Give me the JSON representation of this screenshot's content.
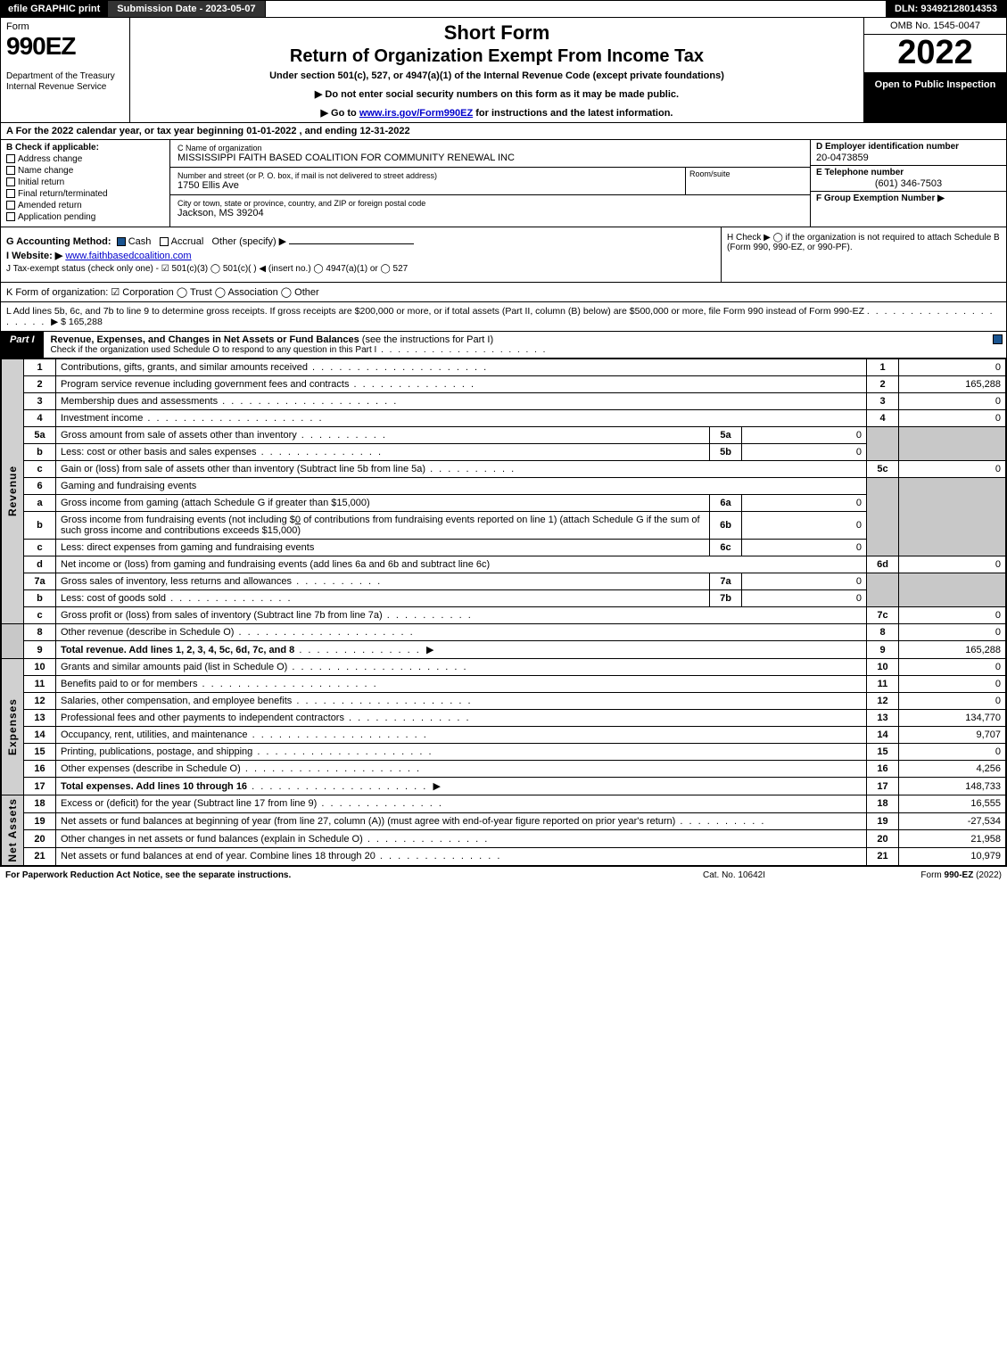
{
  "topbar": {
    "efile": "efile GRAPHIC print",
    "subdate_label": "Submission Date - 2023-05-07",
    "dln": "DLN: 93492128014353"
  },
  "header": {
    "form_word": "Form",
    "form_num": "990EZ",
    "dept": "Department of the Treasury\nInternal Revenue Service",
    "short": "Short Form",
    "title": "Return of Organization Exempt From Income Tax",
    "under": "Under section 501(c), 527, or 4947(a)(1) of the Internal Revenue Code (except private foundations)",
    "instr1": "▶ Do not enter social security numbers on this form as it may be made public.",
    "instr2_pre": "▶ Go to ",
    "instr2_link": "www.irs.gov/Form990EZ",
    "instr2_post": " for instructions and the latest information.",
    "omb": "OMB No. 1545-0047",
    "year": "2022",
    "open": "Open to Public Inspection"
  },
  "line_a": "A  For the 2022 calendar year, or tax year beginning 01-01-2022  , and ending 12-31-2022",
  "sec_b": {
    "title": "B  Check if applicable:",
    "opts": [
      "Address change",
      "Name change",
      "Initial return",
      "Final return/terminated",
      "Amended return",
      "Application pending"
    ],
    "c_label": "C Name of organization",
    "c_val": "MISSISSIPPI FAITH BASED COALITION FOR COMMUNITY RENEWAL INC",
    "street_label": "Number and street (or P. O. box, if mail is not delivered to street address)",
    "street_val": "1750 Ellis Ave",
    "room_label": "Room/suite",
    "city_label": "City or town, state or province, country, and ZIP or foreign postal code",
    "city_val": "Jackson, MS  39204",
    "d_label": "D Employer identification number",
    "d_val": "20-0473859",
    "e_label": "E Telephone number",
    "e_val": "(601) 346-7503",
    "f_label": "F Group Exemption Number  ▶"
  },
  "sec_g": {
    "g_label": "G Accounting Method:",
    "g_cash": "Cash",
    "g_accr": "Accrual",
    "g_other": "Other (specify) ▶",
    "i_label": "I Website: ▶",
    "i_val": "www.faithbasedcoalition.com",
    "j_text": "J Tax-exempt status (check only one) - ☑ 501(c)(3)  ◯ 501(c)(  ) ◀ (insert no.)  ◯ 4947(a)(1) or  ◯ 527",
    "h_text": "H  Check ▶  ◯  if the organization is not required to attach Schedule B (Form 990, 990-EZ, or 990-PF)."
  },
  "line_k": "K Form of organization:  ☑ Corporation   ◯ Trust   ◯ Association   ◯ Other",
  "line_l_pre": "L Add lines 5b, 6c, and 7b to line 9 to determine gross receipts. If gross receipts are $200,000 or more, or if total assets (Part II, column (B) below) are $500,000 or more, file Form 990 instead of Form 990-EZ",
  "line_l_amt": "▶ $ 165,288",
  "part1": {
    "tag": "Part I",
    "title": "Revenue, Expenses, and Changes in Net Assets or Fund Balances",
    "title_post": " (see the instructions for Part I)",
    "sub": "Check if the organization used Schedule O to respond to any question in this Part I"
  },
  "rot": {
    "revenue": "Revenue",
    "expenses": "Expenses",
    "netassets": "Net Assets"
  },
  "lines": {
    "l1": {
      "n": "1",
      "d": "Contributions, gifts, grants, and similar amounts received",
      "rn": "1",
      "rv": "0"
    },
    "l2": {
      "n": "2",
      "d": "Program service revenue including government fees and contracts",
      "rn": "2",
      "rv": "165,288"
    },
    "l3": {
      "n": "3",
      "d": "Membership dues and assessments",
      "rn": "3",
      "rv": "0"
    },
    "l4": {
      "n": "4",
      "d": "Investment income",
      "rn": "4",
      "rv": "0"
    },
    "l5a": {
      "n": "5a",
      "d": "Gross amount from sale of assets other than inventory",
      "sn": "5a",
      "sv": "0"
    },
    "l5b": {
      "n": "b",
      "d": "Less: cost or other basis and sales expenses",
      "sn": "5b",
      "sv": "0"
    },
    "l5c": {
      "n": "c",
      "d": "Gain or (loss) from sale of assets other than inventory (Subtract line 5b from line 5a)",
      "rn": "5c",
      "rv": "0"
    },
    "l6": {
      "n": "6",
      "d": "Gaming and fundraising events"
    },
    "l6a": {
      "n": "a",
      "d": "Gross income from gaming (attach Schedule G if greater than $15,000)",
      "sn": "6a",
      "sv": "0"
    },
    "l6b": {
      "n": "b",
      "d_pre": "Gross income from fundraising events (not including $",
      "d_amt": "0",
      "d_post": " of contributions from fundraising events reported on line 1) (attach Schedule G if the sum of such gross income and contributions exceeds $15,000)",
      "sn": "6b",
      "sv": "0"
    },
    "l6c": {
      "n": "c",
      "d": "Less: direct expenses from gaming and fundraising events",
      "sn": "6c",
      "sv": "0"
    },
    "l6d": {
      "n": "d",
      "d": "Net income or (loss) from gaming and fundraising events (add lines 6a and 6b and subtract line 6c)",
      "rn": "6d",
      "rv": "0"
    },
    "l7a": {
      "n": "7a",
      "d": "Gross sales of inventory, less returns and allowances",
      "sn": "7a",
      "sv": "0"
    },
    "l7b": {
      "n": "b",
      "d": "Less: cost of goods sold",
      "sn": "7b",
      "sv": "0"
    },
    "l7c": {
      "n": "c",
      "d": "Gross profit or (loss) from sales of inventory (Subtract line 7b from line 7a)",
      "rn": "7c",
      "rv": "0"
    },
    "l8": {
      "n": "8",
      "d": "Other revenue (describe in Schedule O)",
      "rn": "8",
      "rv": "0"
    },
    "l9": {
      "n": "9",
      "d": "Total revenue. Add lines 1, 2, 3, 4, 5c, 6d, 7c, and 8",
      "rn": "9",
      "rv": "165,288",
      "arrow": "▶"
    },
    "l10": {
      "n": "10",
      "d": "Grants and similar amounts paid (list in Schedule O)",
      "rn": "10",
      "rv": "0"
    },
    "l11": {
      "n": "11",
      "d": "Benefits paid to or for members",
      "rn": "11",
      "rv": "0"
    },
    "l12": {
      "n": "12",
      "d": "Salaries, other compensation, and employee benefits",
      "rn": "12",
      "rv": "0"
    },
    "l13": {
      "n": "13",
      "d": "Professional fees and other payments to independent contractors",
      "rn": "13",
      "rv": "134,770"
    },
    "l14": {
      "n": "14",
      "d": "Occupancy, rent, utilities, and maintenance",
      "rn": "14",
      "rv": "9,707"
    },
    "l15": {
      "n": "15",
      "d": "Printing, publications, postage, and shipping",
      "rn": "15",
      "rv": "0"
    },
    "l16": {
      "n": "16",
      "d": "Other expenses (describe in Schedule O)",
      "rn": "16",
      "rv": "4,256"
    },
    "l17": {
      "n": "17",
      "d": "Total expenses. Add lines 10 through 16",
      "rn": "17",
      "rv": "148,733",
      "arrow": "▶"
    },
    "l18": {
      "n": "18",
      "d": "Excess or (deficit) for the year (Subtract line 17 from line 9)",
      "rn": "18",
      "rv": "16,555"
    },
    "l19": {
      "n": "19",
      "d": "Net assets or fund balances at beginning of year (from line 27, column (A)) (must agree with end-of-year figure reported on prior year's return)",
      "rn": "19",
      "rv": "-27,534"
    },
    "l20": {
      "n": "20",
      "d": "Other changes in net assets or fund balances (explain in Schedule O)",
      "rn": "20",
      "rv": "21,958"
    },
    "l21": {
      "n": "21",
      "d": "Net assets or fund balances at end of year. Combine lines 18 through 20",
      "rn": "21",
      "rv": "10,979"
    }
  },
  "footer": {
    "left": "For Paperwork Reduction Act Notice, see the separate instructions.",
    "center": "Cat. No. 10642I",
    "right_pre": "Form ",
    "right_form": "990-EZ",
    "right_post": " (2022)"
  }
}
